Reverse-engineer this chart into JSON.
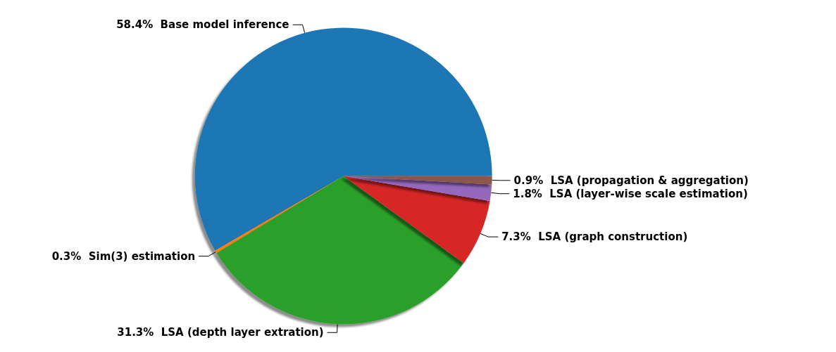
{
  "chart_data": {
    "type": "pie",
    "categories": [
      "Base model inference",
      "Sim(3) estimation",
      "LSA (depth layer extration)",
      "LSA (graph construction)",
      "LSA (layer-wise scale estimation)",
      "LSA (propagation & aggregation)"
    ],
    "values": [
      58.4,
      0.3,
      31.3,
      7.3,
      1.8,
      0.9
    ],
    "colors": [
      "#1f77b4",
      "#ff7f0e",
      "#2ca02c",
      "#d62728",
      "#9467bd",
      "#8c564b"
    ],
    "value_labels": [
      "58.4%",
      "0.3%",
      "31.3%",
      "7.3%",
      "1.8%",
      "0.9%"
    ],
    "legend": false
  }
}
